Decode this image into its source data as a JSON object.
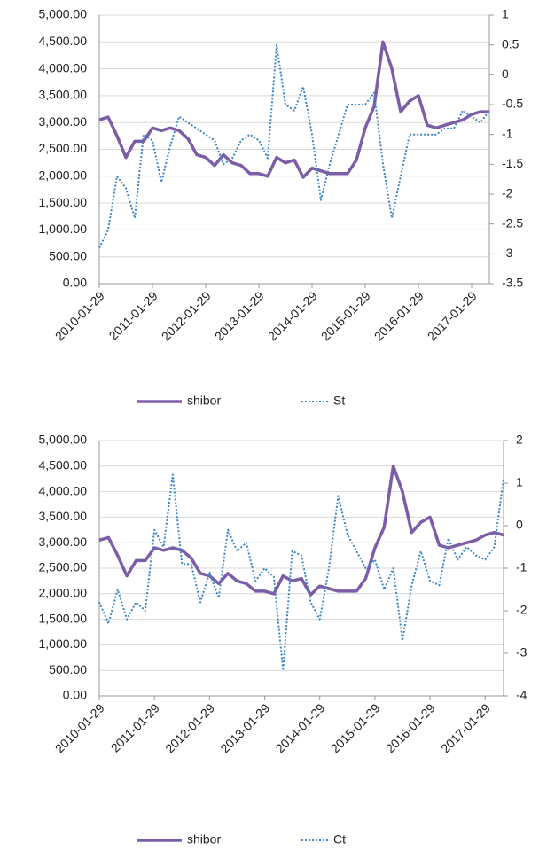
{
  "chart_data": [
    {
      "type": "line",
      "categories": [
        "2010-01-29",
        null,
        null,
        null,
        null,
        null,
        "2011-01-29",
        null,
        null,
        null,
        null,
        null,
        "2012-01-29",
        null,
        null,
        null,
        null,
        null,
        "2013-01-29",
        null,
        null,
        null,
        null,
        null,
        "2014-01-29",
        null,
        null,
        null,
        null,
        null,
        "2015-01-29",
        null,
        null,
        null,
        null,
        null,
        "2016-01-29",
        null,
        null,
        null,
        null,
        null,
        "2017-01-29",
        null,
        null
      ],
      "series": [
        {
          "name": "shibor",
          "color": "#7b5ea7",
          "line_style": "solid",
          "values": [
            3050,
            3100,
            2750,
            2350,
            2650,
            2650,
            2900,
            2850,
            2900,
            2850,
            2700,
            2400,
            2350,
            2200,
            2400,
            2250,
            2200,
            2050,
            2050,
            2000,
            2350,
            2250,
            2300,
            1980,
            2150,
            2100,
            2050,
            2050,
            2050,
            2300,
            2900,
            3300,
            4500,
            4000,
            3200,
            3400,
            3500,
            2950,
            2900,
            2950,
            3000,
            3050,
            3150,
            3200,
            3200
          ]
        },
        {
          "name": "St",
          "color": "#3d85c6",
          "line_style": "dotted",
          "axis": "y2",
          "values": [
            -2.9,
            -2.6,
            -1.7,
            -1.9,
            -2.4,
            -1,
            -1.1,
            -1.8,
            -1.2,
            -0.7,
            -0.8,
            -0.9,
            -1.0,
            -1.1,
            -1.5,
            -1.4,
            -1.1,
            -1.0,
            -1.1,
            -1.4,
            0.5,
            -0.5,
            -0.6,
            -0.2,
            -1.0,
            -2.1,
            -1.5,
            -1.0,
            -0.5,
            -0.5,
            -0.5,
            -0.3,
            -1.5,
            -2.4,
            -1.7,
            -1.0,
            -1.0,
            -1.0,
            -1.0,
            -0.9,
            -0.9,
            -0.6,
            -0.7,
            -0.8,
            -0.6
          ]
        }
      ],
      "ylim": [
        0,
        5000
      ],
      "yticks": [
        {
          "value": 0,
          "label": "0.00"
        },
        {
          "value": 500,
          "label": "500.00"
        },
        {
          "value": 1000,
          "label": "1,000.00"
        },
        {
          "value": 1500,
          "label": "1,500.00"
        },
        {
          "value": 2000,
          "label": "2,000.00"
        },
        {
          "value": 2500,
          "label": "2,500.00"
        },
        {
          "value": 3000,
          "label": "3,000.00"
        },
        {
          "value": 3500,
          "label": "3,500.00"
        },
        {
          "value": 4000,
          "label": "4,000.00"
        },
        {
          "value": 4500,
          "label": "4,500.00"
        },
        {
          "value": 5000,
          "label": "5,000.00"
        }
      ],
      "y2lim": [
        -3.5,
        1
      ],
      "y2ticks": [
        -3.5,
        -3,
        -2.5,
        -2,
        -1.5,
        -1,
        -0.5,
        0,
        0.5,
        1
      ],
      "grid": true,
      "legend": "bottom"
    },
    {
      "type": "line",
      "categories": [
        "2010-01-29",
        null,
        null,
        null,
        null,
        null,
        "2011-01-29",
        null,
        null,
        null,
        null,
        null,
        "2012-01-29",
        null,
        null,
        null,
        null,
        null,
        "2013-01-29",
        null,
        null,
        null,
        null,
        null,
        "2014-01-29",
        null,
        null,
        null,
        null,
        null,
        "2015-01-29",
        null,
        null,
        null,
        null,
        null,
        "2016-01-29",
        null,
        null,
        null,
        null,
        null,
        "2017-01-29",
        null,
        null
      ],
      "series": [
        {
          "name": "shibor",
          "color": "#7b5ea7",
          "line_style": "solid",
          "values": [
            3050,
            3100,
            2750,
            2350,
            2650,
            2650,
            2900,
            2850,
            2900,
            2850,
            2700,
            2400,
            2350,
            2200,
            2400,
            2250,
            2200,
            2050,
            2050,
            2000,
            2350,
            2250,
            2300,
            1980,
            2150,
            2100,
            2050,
            2050,
            2050,
            2300,
            2900,
            3300,
            4500,
            4000,
            3200,
            3400,
            3500,
            2950,
            2900,
            2950,
            3000,
            3050,
            3150,
            3200,
            3150
          ]
        },
        {
          "name": "Ct",
          "color": "#3d85c6",
          "line_style": "dotted",
          "axis": "y2",
          "values": [
            -1.8,
            -2.3,
            -1.5,
            -2.2,
            -1.8,
            -2.0,
            -0.1,
            -0.5,
            1.2,
            -0.9,
            -0.9,
            -1.8,
            -1.1,
            -1.7,
            -0.1,
            -0.6,
            -0.4,
            -1.3,
            -1.0,
            -1.2,
            -3.4,
            -0.6,
            -0.7,
            -1.8,
            -2.2,
            -1.0,
            0.7,
            -0.2,
            -0.6,
            -1.0,
            -0.8,
            -1.5,
            -1.0,
            -2.7,
            -1.4,
            -0.6,
            -1.3,
            -1.4,
            -0.3,
            -0.8,
            -0.5,
            -0.7,
            -0.8,
            -0.5,
            1.1
          ]
        }
      ],
      "ylim": [
        0,
        5000
      ],
      "yticks": [
        {
          "value": 0,
          "label": "0.00"
        },
        {
          "value": 500,
          "label": "500.00"
        },
        {
          "value": 1000,
          "label": "1,000.00"
        },
        {
          "value": 1500,
          "label": "1,500.00"
        },
        {
          "value": 2000,
          "label": "2,000.00"
        },
        {
          "value": 2500,
          "label": "2,500.00"
        },
        {
          "value": 3000,
          "label": "3,000.00"
        },
        {
          "value": 3500,
          "label": "3,500.00"
        },
        {
          "value": 4000,
          "label": "4,000.00"
        },
        {
          "value": 4500,
          "label": "4,500.00"
        },
        {
          "value": 5000,
          "label": "5,000.00"
        }
      ],
      "y2lim": [
        -4,
        2
      ],
      "y2ticks": [
        -4,
        -3,
        -2,
        -1,
        0,
        1,
        2
      ],
      "grid": true,
      "legend": "bottom"
    }
  ]
}
